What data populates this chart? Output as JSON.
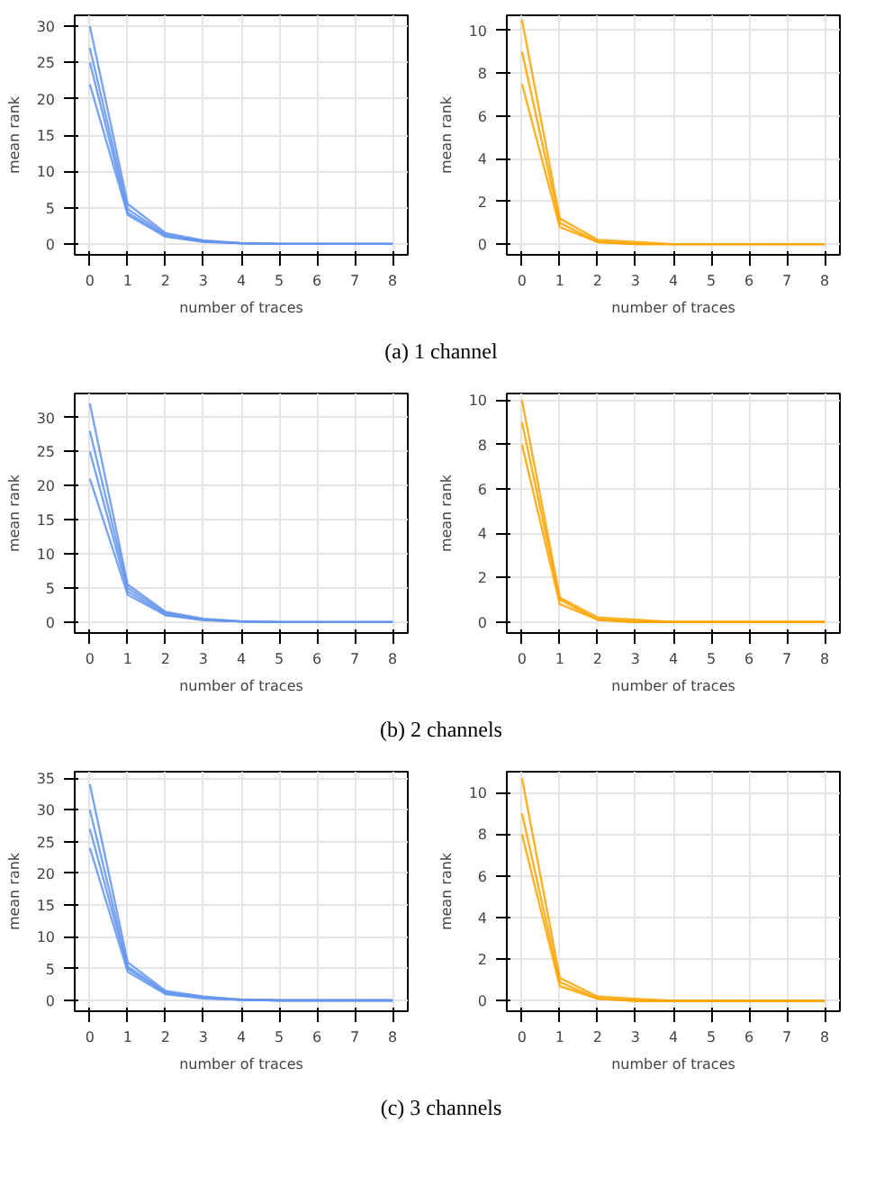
{
  "chart_data": [
    {
      "type": "line",
      "xlabel": "number of traces",
      "ylabel": "mean rank",
      "x": [
        0,
        1,
        2,
        3,
        4,
        5,
        6,
        7,
        8
      ],
      "xlim": [
        -0.4,
        8.4
      ],
      "xticks": [
        0,
        1,
        2,
        3,
        4,
        5,
        6,
        7,
        8
      ],
      "ylim": [
        -1.5,
        31.5
      ],
      "yticks": [
        0,
        5,
        10,
        15,
        20,
        25,
        30
      ],
      "grid": true,
      "annotations": [
        "(a) 1 channel"
      ],
      "series": [
        {
          "color": "#6495ed",
          "values": [
            30,
            5.5,
            1.5,
            0.5,
            0.1,
            0,
            0,
            0,
            0
          ]
        },
        {
          "color": "#6495ed",
          "values": [
            27,
            4.8,
            1.3,
            0.4,
            0.1,
            0,
            0,
            0,
            0
          ]
        },
        {
          "color": "#6495ed",
          "values": [
            25,
            4.3,
            1.1,
            0.3,
            0.1,
            0,
            0,
            0,
            0
          ]
        },
        {
          "color": "#6495ed",
          "values": [
            22,
            4,
            1,
            0.3,
            0.1,
            0,
            0,
            0,
            0
          ]
        }
      ]
    },
    {
      "type": "line",
      "xlabel": "number of traces",
      "ylabel": "mean rank",
      "x": [
        0,
        1,
        2,
        3,
        4,
        5,
        6,
        7,
        8
      ],
      "xlim": [
        -0.4,
        8.4
      ],
      "xticks": [
        0,
        1,
        2,
        3,
        4,
        5,
        6,
        7,
        8
      ],
      "ylim": [
        -0.5,
        10.7
      ],
      "yticks": [
        0,
        2,
        4,
        6,
        8,
        10
      ],
      "grid": true,
      "series": [
        {
          "color": "#ffa500",
          "values": [
            10.5,
            1.2,
            0.2,
            0.1,
            0,
            0,
            0,
            0,
            0
          ]
        },
        {
          "color": "#ffa500",
          "values": [
            9,
            1,
            0.1,
            0,
            0,
            0,
            0,
            0,
            0
          ]
        },
        {
          "color": "#ffa500",
          "values": [
            7.5,
            0.8,
            0.1,
            0,
            0,
            0,
            0,
            0,
            0
          ]
        }
      ]
    },
    {
      "type": "line",
      "xlabel": "number of traces",
      "ylabel": "mean rank",
      "x": [
        0,
        1,
        2,
        3,
        4,
        5,
        6,
        7,
        8
      ],
      "xlim": [
        -0.4,
        8.4
      ],
      "xticks": [
        0,
        1,
        2,
        3,
        4,
        5,
        6,
        7,
        8
      ],
      "ylim": [
        -1.6,
        33.5
      ],
      "yticks": [
        0,
        5,
        10,
        15,
        20,
        25,
        30
      ],
      "grid": true,
      "annotations": [
        "(b) 2 channels"
      ],
      "series": [
        {
          "color": "#6495ed",
          "values": [
            32,
            5.5,
            1.5,
            0.5,
            0.1,
            0,
            0,
            0,
            0
          ]
        },
        {
          "color": "#6495ed",
          "values": [
            28,
            5,
            1.3,
            0.4,
            0.1,
            0,
            0,
            0,
            0
          ]
        },
        {
          "color": "#6495ed",
          "values": [
            25,
            4.5,
            1.1,
            0.3,
            0.1,
            0,
            0,
            0,
            0
          ]
        },
        {
          "color": "#6495ed",
          "values": [
            21,
            4,
            1,
            0.3,
            0.1,
            0,
            0,
            0,
            0
          ]
        }
      ]
    },
    {
      "type": "line",
      "xlabel": "number of traces",
      "ylabel": "mean rank",
      "x": [
        0,
        1,
        2,
        3,
        4,
        5,
        6,
        7,
        8
      ],
      "xlim": [
        -0.4,
        8.4
      ],
      "xticks": [
        0,
        1,
        2,
        3,
        4,
        5,
        6,
        7,
        8
      ],
      "ylim": [
        -0.5,
        10.3
      ],
      "yticks": [
        0,
        2,
        4,
        6,
        8,
        10
      ],
      "grid": true,
      "series": [
        {
          "color": "#ffa500",
          "values": [
            10,
            1.1,
            0.2,
            0.1,
            0,
            0,
            0,
            0,
            0
          ]
        },
        {
          "color": "#ffa500",
          "values": [
            9,
            1,
            0.1,
            0,
            0,
            0,
            0,
            0,
            0
          ]
        },
        {
          "color": "#ffa500",
          "values": [
            8,
            0.8,
            0.1,
            0,
            0,
            0,
            0,
            0,
            0
          ]
        }
      ]
    },
    {
      "type": "line",
      "xlabel": "number of traces",
      "ylabel": "mean rank",
      "x": [
        0,
        1,
        2,
        3,
        4,
        5,
        6,
        7,
        8
      ],
      "xlim": [
        -0.4,
        8.4
      ],
      "xticks": [
        0,
        1,
        2,
        3,
        4,
        5,
        6,
        7,
        8
      ],
      "ylim": [
        -1.7,
        36
      ],
      "yticks": [
        0,
        5,
        10,
        15,
        20,
        25,
        30,
        35
      ],
      "grid": true,
      "annotations": [
        "(c) 3 channels"
      ],
      "series": [
        {
          "color": "#6495ed",
          "values": [
            34,
            6,
            1.5,
            0.6,
            0.1,
            0,
            0,
            0,
            0
          ]
        },
        {
          "color": "#6495ed",
          "values": [
            30,
            5.3,
            1.3,
            0.5,
            0.1,
            0,
            0,
            0,
            0
          ]
        },
        {
          "color": "#6495ed",
          "values": [
            27,
            5,
            1.1,
            0.4,
            0.1,
            0,
            0,
            0,
            0
          ]
        },
        {
          "color": "#6495ed",
          "values": [
            24,
            4.5,
            1,
            0.3,
            0.1,
            0,
            0,
            0,
            0
          ]
        }
      ]
    },
    {
      "type": "line",
      "xlabel": "number of traces",
      "ylabel": "mean rank",
      "x": [
        0,
        1,
        2,
        3,
        4,
        5,
        6,
        7,
        8
      ],
      "xlim": [
        -0.4,
        8.4
      ],
      "xticks": [
        0,
        1,
        2,
        3,
        4,
        5,
        6,
        7,
        8
      ],
      "ylim": [
        -0.5,
        11
      ],
      "yticks": [
        0,
        2,
        4,
        6,
        8,
        10
      ],
      "grid": true,
      "series": [
        {
          "color": "#ffa500",
          "values": [
            10.7,
            1.1,
            0.2,
            0.1,
            0,
            0,
            0,
            0,
            0
          ]
        },
        {
          "color": "#ffa500",
          "values": [
            9,
            0.9,
            0.1,
            0,
            0,
            0,
            0,
            0,
            0
          ]
        },
        {
          "color": "#ffa500",
          "values": [
            8,
            0.7,
            0.1,
            0,
            0,
            0,
            0,
            0,
            0
          ]
        }
      ]
    }
  ]
}
